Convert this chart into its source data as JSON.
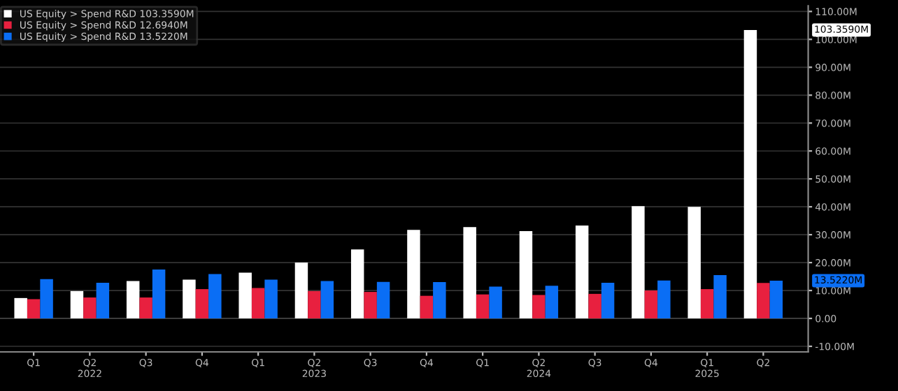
{
  "chart_data": {
    "type": "bar",
    "categories": [
      "Q1",
      "Q2\n2022",
      "Q3",
      "Q4",
      "Q1",
      "Q2\n2023",
      "Q3",
      "Q4",
      "Q1",
      "Q2\n2024",
      "Q3",
      "Q4",
      "Q1\n2025",
      "Q2"
    ],
    "series": [
      {
        "name": "US Equity > Spend R&D 103.3590M",
        "color": "#ffffff",
        "values": [
          7.3,
          9.8,
          13.4,
          13.9,
          16.4,
          20.0,
          24.7,
          31.7,
          32.7,
          31.3,
          33.3,
          40.2,
          40.0,
          103.359
        ]
      },
      {
        "name": "US Equity > Spend R&D 12.6940M",
        "color": "#e8203f",
        "values": [
          6.9,
          7.5,
          7.5,
          10.5,
          10.9,
          9.8,
          9.5,
          8.1,
          8.6,
          8.4,
          8.8,
          10.0,
          10.5,
          12.694
        ]
      },
      {
        "name": "US Equity > Spend R&D 13.5220M",
        "color": "#0a6ef5",
        "values": [
          14.1,
          12.8,
          17.5,
          15.9,
          13.9,
          13.4,
          13.1,
          13.0,
          11.4,
          11.7,
          12.8,
          13.6,
          15.5,
          13.522
        ]
      }
    ],
    "ylim": [
      -12,
      112
    ],
    "yticks": [
      {
        "value": -10,
        "label": "-10.00M"
      },
      {
        "value": 0,
        "label": "0.00"
      },
      {
        "value": 10,
        "label": "10.00M"
      },
      {
        "value": 20,
        "label": "20.00M"
      },
      {
        "value": 30,
        "label": "30.00M"
      },
      {
        "value": 40,
        "label": "40.00M"
      },
      {
        "value": 50,
        "label": "50.00M"
      },
      {
        "value": 60,
        "label": "60.00M"
      },
      {
        "value": 70,
        "label": "70.00M"
      },
      {
        "value": 80,
        "label": "80.00M"
      },
      {
        "value": 90,
        "label": "90.00M"
      },
      {
        "value": 100,
        "label": "100.00M"
      },
      {
        "value": 110,
        "label": "110.00M"
      }
    ],
    "annotations": [
      "103.3590M",
      "13.5220M"
    ],
    "grid": "y",
    "legend": "top left"
  }
}
